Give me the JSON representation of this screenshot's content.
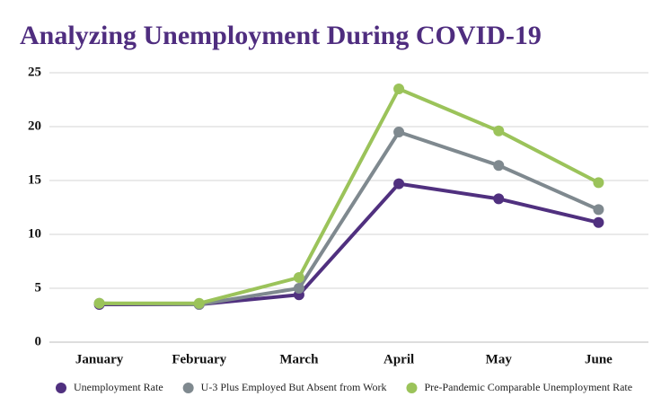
{
  "chart_data": {
    "type": "line",
    "title": "Analyzing Unemployment During COVID-19",
    "categories": [
      "January",
      "February",
      "March",
      "April",
      "May",
      "June"
    ],
    "series": [
      {
        "name": "Unemployment Rate",
        "color": "#50307f",
        "values": [
          3.5,
          3.5,
          4.4,
          14.7,
          13.3,
          11.1
        ]
      },
      {
        "name": "U-3 Plus Employed But Absent from Work",
        "color": "#7f898f",
        "values": [
          3.6,
          3.5,
          5.0,
          19.5,
          16.4,
          12.3
        ]
      },
      {
        "name": "Pre-Pandemic Comparable Unemployment Rate",
        "color": "#9bc35a",
        "values": [
          3.6,
          3.6,
          6.0,
          23.5,
          19.6,
          14.8
        ]
      }
    ],
    "ylim": [
      0,
      25
    ],
    "yticks": [
      0,
      5,
      10,
      15,
      20,
      25
    ],
    "grid": true,
    "legend": "bottom"
  }
}
